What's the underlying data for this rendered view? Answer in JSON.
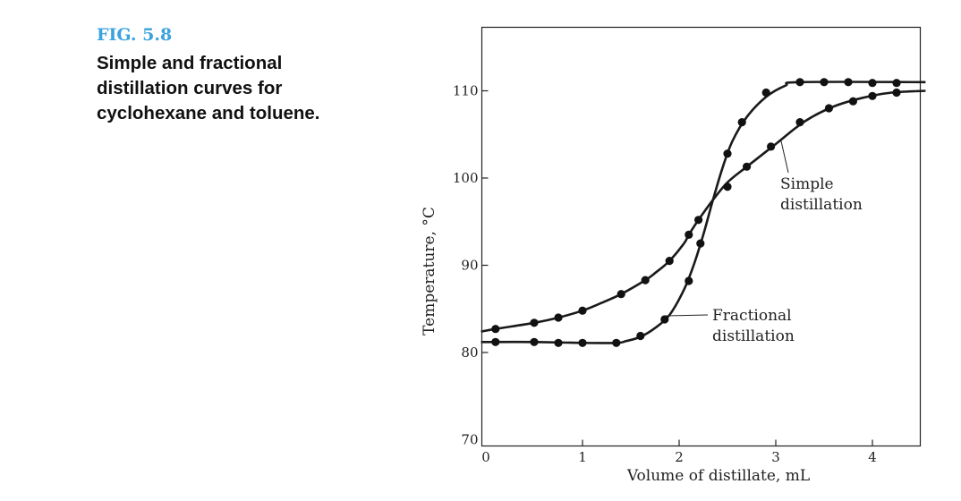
{
  "figure": {
    "label": "FIG. 5.8",
    "caption_lines": [
      "Simple and fractional",
      "distillation curves for",
      "cyclohexane and toluene."
    ]
  },
  "chart_data": {
    "type": "line",
    "title": "",
    "xlabel": "Volume of distillate, mL",
    "ylabel": "Temperature, °C",
    "xlim": [
      -0.05,
      4.55
    ],
    "ylim": [
      69.5,
      117
    ],
    "xticks": [
      0,
      1,
      2,
      3,
      4
    ],
    "yticks": [
      70,
      80,
      90,
      100,
      110
    ],
    "grid": false,
    "series": [
      {
        "name": "Simple distillation",
        "curve": [
          [
            -0.05,
            82.4
          ],
          [
            0.1,
            82.7
          ],
          [
            0.5,
            83.4
          ],
          [
            0.75,
            84.0
          ],
          [
            1.0,
            84.8
          ],
          [
            1.2,
            85.7
          ],
          [
            1.4,
            86.7
          ],
          [
            1.65,
            88.3
          ],
          [
            1.75,
            89.1
          ],
          [
            1.9,
            90.5
          ],
          [
            2.05,
            92.5
          ],
          [
            2.1,
            93.5
          ],
          [
            2.2,
            95.2
          ],
          [
            2.35,
            97.5
          ],
          [
            2.5,
            99.5
          ],
          [
            2.7,
            101.3
          ],
          [
            3.0,
            103.9
          ],
          [
            3.3,
            106.5
          ],
          [
            3.6,
            108.2
          ],
          [
            3.9,
            109.2
          ],
          [
            4.2,
            109.8
          ],
          [
            4.55,
            110.0
          ]
        ],
        "points": [
          [
            0.1,
            82.7
          ],
          [
            0.5,
            83.4
          ],
          [
            0.75,
            84.0
          ],
          [
            1.0,
            84.8
          ],
          [
            1.4,
            86.7
          ],
          [
            1.65,
            88.3
          ],
          [
            1.9,
            90.5
          ],
          [
            2.1,
            93.5
          ],
          [
            2.2,
            95.2
          ],
          [
            2.5,
            99.0
          ],
          [
            2.7,
            101.3
          ],
          [
            2.95,
            103.6
          ],
          [
            3.25,
            106.4
          ],
          [
            3.55,
            108.0
          ],
          [
            3.8,
            108.8
          ],
          [
            4.0,
            109.4
          ],
          [
            4.25,
            109.8
          ]
        ]
      },
      {
        "name": "Fractional distillation",
        "curve": [
          [
            -0.05,
            81.2
          ],
          [
            0.5,
            81.2
          ],
          [
            1.0,
            81.1
          ],
          [
            1.35,
            81.1
          ],
          [
            1.45,
            81.3
          ],
          [
            1.6,
            81.8
          ],
          [
            1.75,
            82.8
          ],
          [
            1.9,
            84.3
          ],
          [
            2.05,
            87.2
          ],
          [
            2.15,
            90.0
          ],
          [
            2.25,
            93.5
          ],
          [
            2.35,
            97.5
          ],
          [
            2.45,
            101.2
          ],
          [
            2.55,
            104.2
          ],
          [
            2.7,
            107.0
          ],
          [
            2.9,
            109.3
          ],
          [
            3.1,
            110.6
          ],
          [
            3.25,
            111.0
          ],
          [
            4.55,
            111.0
          ]
        ],
        "points": [
          [
            0.1,
            81.2
          ],
          [
            0.5,
            81.2
          ],
          [
            0.75,
            81.1
          ],
          [
            1.0,
            81.1
          ],
          [
            1.35,
            81.1
          ],
          [
            1.6,
            81.9
          ],
          [
            1.85,
            83.8
          ],
          [
            2.1,
            88.2
          ],
          [
            2.22,
            92.5
          ],
          [
            2.5,
            102.8
          ],
          [
            2.65,
            106.4
          ],
          [
            2.9,
            109.8
          ],
          [
            3.25,
            111.0
          ],
          [
            3.5,
            111.0
          ],
          [
            3.75,
            111.0
          ],
          [
            4.0,
            110.9
          ],
          [
            4.25,
            110.9
          ]
        ]
      }
    ],
    "annotations": [
      {
        "text_lines": [
          "Simple",
          "distillation"
        ],
        "target": [
          3.05,
          104.5
        ]
      },
      {
        "text_lines": [
          "Fractional",
          "distillation"
        ],
        "target": [
          1.85,
          84.2
        ]
      }
    ]
  }
}
